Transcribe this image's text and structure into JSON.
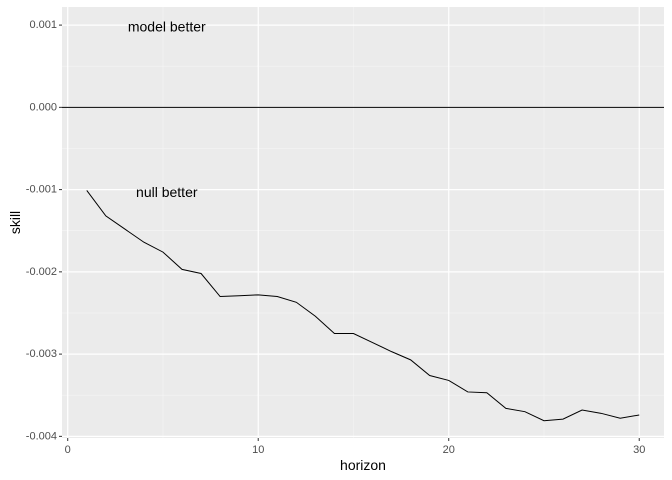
{
  "chart_data": {
    "type": "line",
    "xlabel": "horizon",
    "ylabel": "skill",
    "xlim": [
      -0.3,
      31.3
    ],
    "ylim": [
      -0.00402,
      0.00122
    ],
    "x_ticks": [
      0,
      10,
      20,
      30
    ],
    "x_tick_labels": [
      "0",
      "10",
      "20",
      "30"
    ],
    "y_ticks": [
      0.001,
      0.0,
      -0.001,
      -0.002,
      -0.003,
      -0.004
    ],
    "y_tick_labels": [
      "0.001",
      "0.000",
      "-0.001",
      "-0.002",
      "-0.003",
      "-0.004"
    ],
    "grid": true,
    "reference_line": {
      "y": 0
    },
    "annotations": [
      {
        "text": "model better",
        "x": 5.2,
        "y": 0.00098
      },
      {
        "text": "null better",
        "x": 5.2,
        "y": -0.00103
      }
    ],
    "series": [
      {
        "x": [
          1,
          2,
          3,
          4,
          5,
          6,
          7,
          8,
          9,
          10,
          11,
          12,
          13,
          14,
          15,
          16,
          17,
          18,
          19,
          20,
          21,
          22,
          23,
          24,
          25,
          26,
          27,
          28,
          29,
          30
        ],
        "values": [
          -0.00101,
          -0.00132,
          -0.00148,
          -0.00164,
          -0.00176,
          -0.00197,
          -0.00202,
          -0.0023,
          -0.00229,
          -0.00228,
          -0.0023,
          -0.00237,
          -0.00254,
          -0.00275,
          -0.00275,
          -0.00286,
          -0.00297,
          -0.00307,
          -0.00326,
          -0.00332,
          -0.00346,
          -0.00347,
          -0.00366,
          -0.0037,
          -0.00381,
          -0.00379,
          -0.00368,
          -0.00372,
          -0.00378,
          -0.00374
        ]
      }
    ]
  }
}
